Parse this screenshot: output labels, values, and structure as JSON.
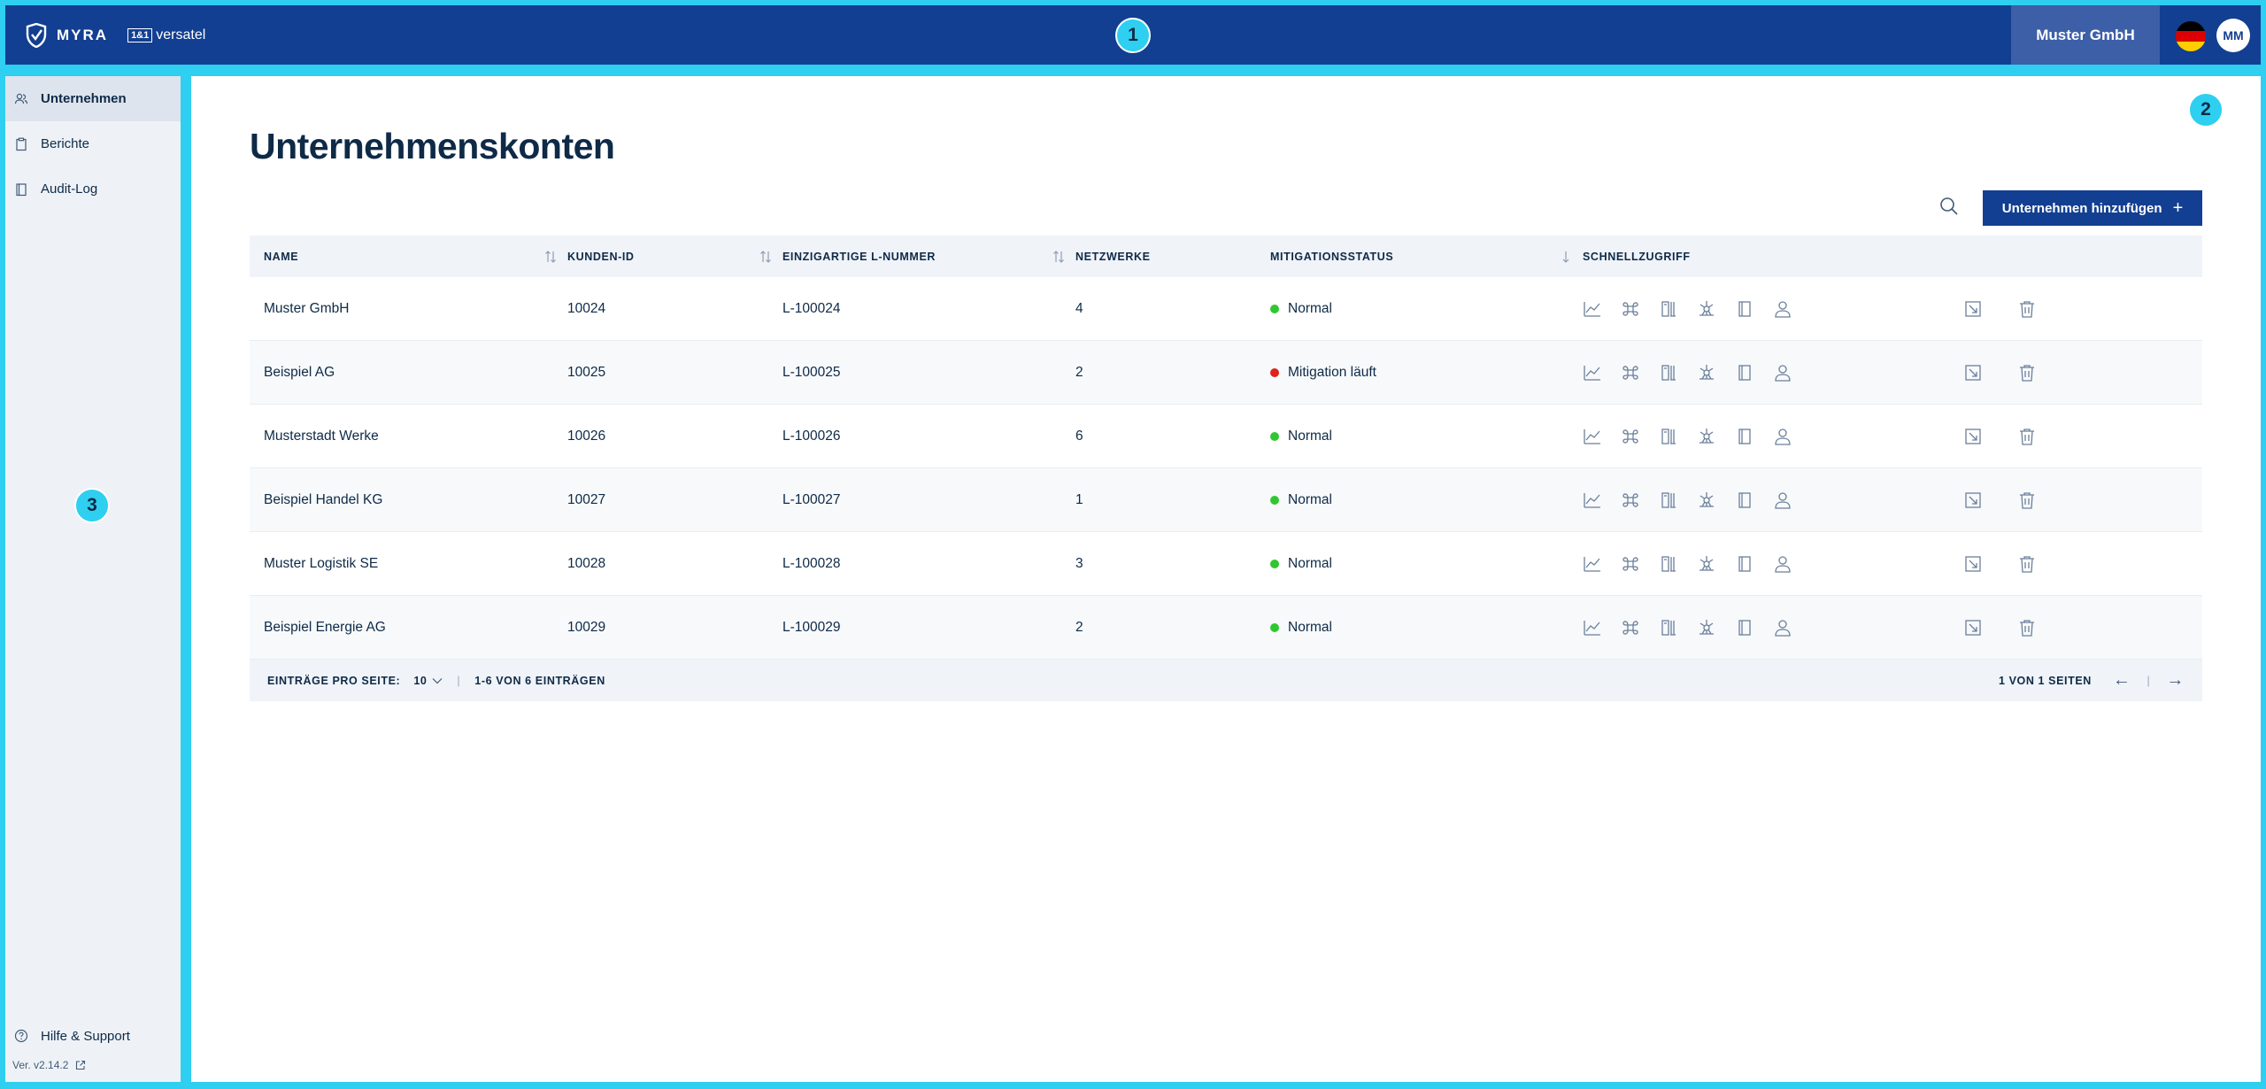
{
  "header": {
    "brand": "MYRA",
    "partner_box": "1&1",
    "partner_name": "versatel",
    "company": "Muster GmbH",
    "avatar_initials": "MM"
  },
  "badges": {
    "one": "1",
    "two": "2",
    "three": "3"
  },
  "sidebar": {
    "items": [
      {
        "label": "Unternehmen",
        "icon": "users-icon",
        "active": true
      },
      {
        "label": "Berichte",
        "icon": "clipboard-icon",
        "active": false
      },
      {
        "label": "Audit-Log",
        "icon": "document-icon",
        "active": false
      }
    ],
    "support": "Hilfe & Support",
    "version": "Ver. v2.14.2"
  },
  "main": {
    "title": "Unternehmenskonten",
    "add_button": "Unternehmen hinzufügen",
    "columns": [
      "NAME",
      "KUNDEN-ID",
      "EINZIGARTIGE L-NUMMER",
      "NETZWERKE",
      "MITIGATIONSSTATUS",
      "SCHNELLZUGRIFF"
    ],
    "rows": [
      {
        "name": "Muster GmbH",
        "id": "10024",
        "lnum": "L-100024",
        "nets": "4",
        "status": "Normal",
        "status_color": "#2fc72f"
      },
      {
        "name": "Beispiel AG",
        "id": "10025",
        "lnum": "L-100025",
        "nets": "2",
        "status": "Mitigation läuft",
        "status_color": "#e0231b"
      },
      {
        "name": "Musterstadt Werke",
        "id": "10026",
        "lnum": "L-100026",
        "nets": "6",
        "status": "Normal",
        "status_color": "#2fc72f"
      },
      {
        "name": "Beispiel Handel KG",
        "id": "10027",
        "lnum": "L-100027",
        "nets": "1",
        "status": "Normal",
        "status_color": "#2fc72f"
      },
      {
        "name": "Muster Logistik SE",
        "id": "10028",
        "lnum": "L-100028",
        "nets": "3",
        "status": "Normal",
        "status_color": "#2fc72f"
      },
      {
        "name": "Beispiel Energie AG",
        "id": "10029",
        "lnum": "L-100029",
        "nets": "2",
        "status": "Normal",
        "status_color": "#2fc72f"
      }
    ],
    "footer": {
      "per_page_label": "EINTRÄGE PRO SEITE:",
      "per_page_value": "10",
      "range": "1-6 VON 6 EINTRÄGEN",
      "page": "1 VON 1 SEITEN",
      "prev": "←",
      "next": "→"
    }
  }
}
